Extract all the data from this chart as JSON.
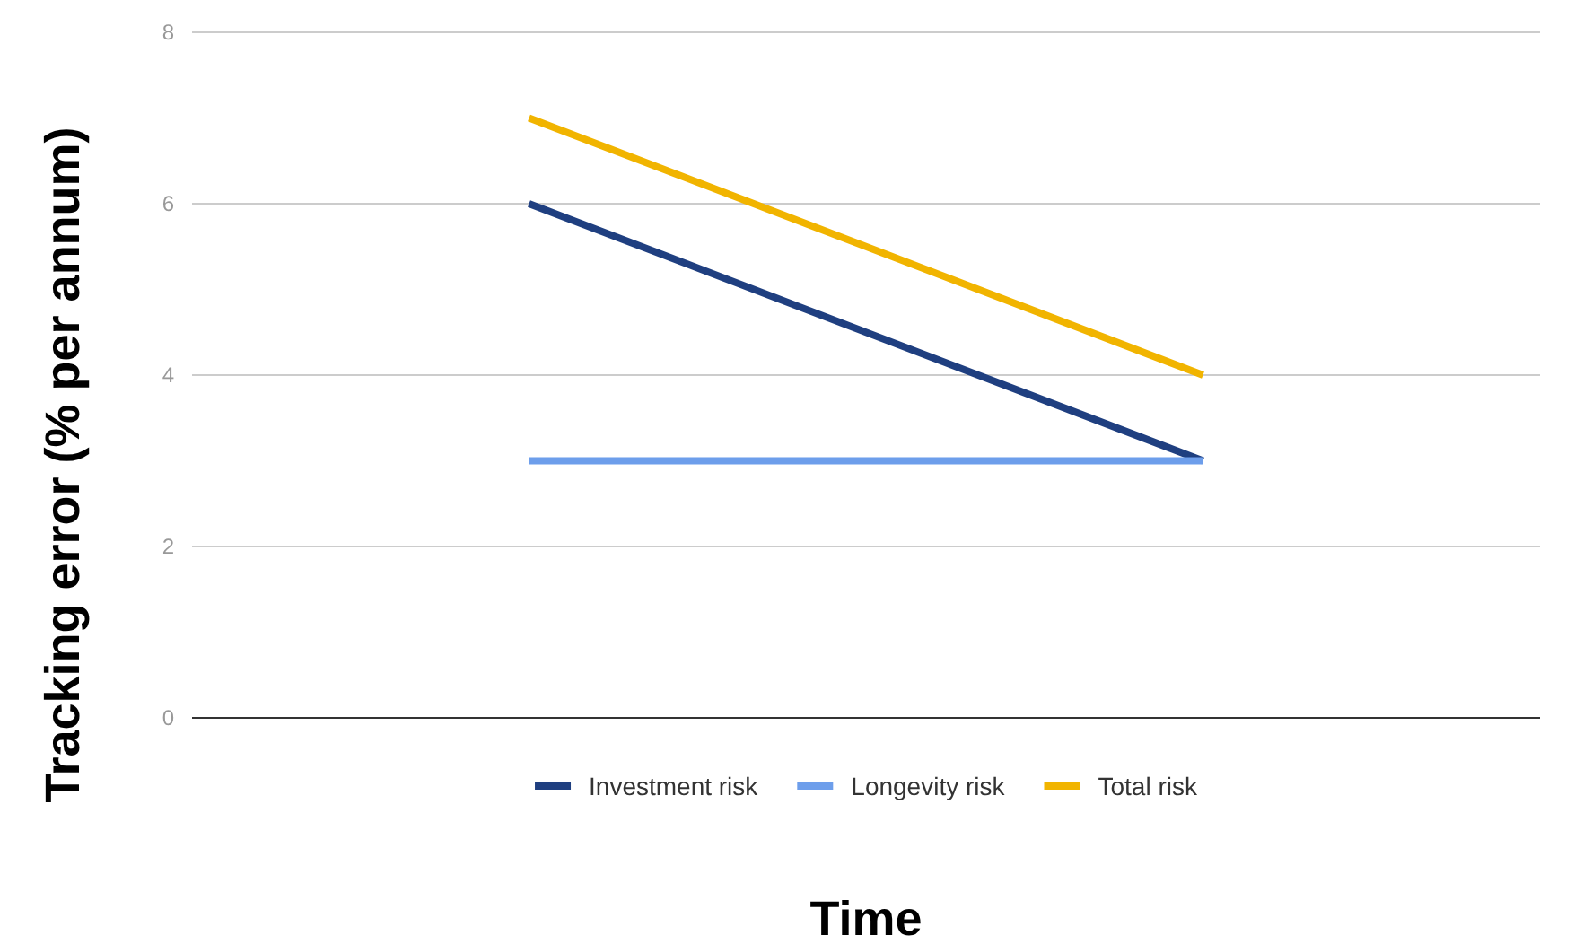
{
  "chart_data": {
    "type": "line",
    "xlabel": "Time",
    "ylabel": "Tracking error (% per annum)",
    "categories": [
      null,
      null
    ],
    "series": [
      {
        "name": "Investment risk",
        "color": "#1f3f80",
        "values": [
          6,
          3
        ]
      },
      {
        "name": "Longevity risk",
        "color": "#6d9eeb",
        "values": [
          3,
          3
        ]
      },
      {
        "name": "Total risk",
        "color": "#f1b400",
        "values": [
          7,
          4
        ]
      }
    ],
    "ylim": [
      0,
      8
    ],
    "yticks": [
      0,
      2,
      4,
      6,
      8
    ],
    "grid": "y",
    "legend": "bottom",
    "marker": "none",
    "line_style": "solid"
  }
}
